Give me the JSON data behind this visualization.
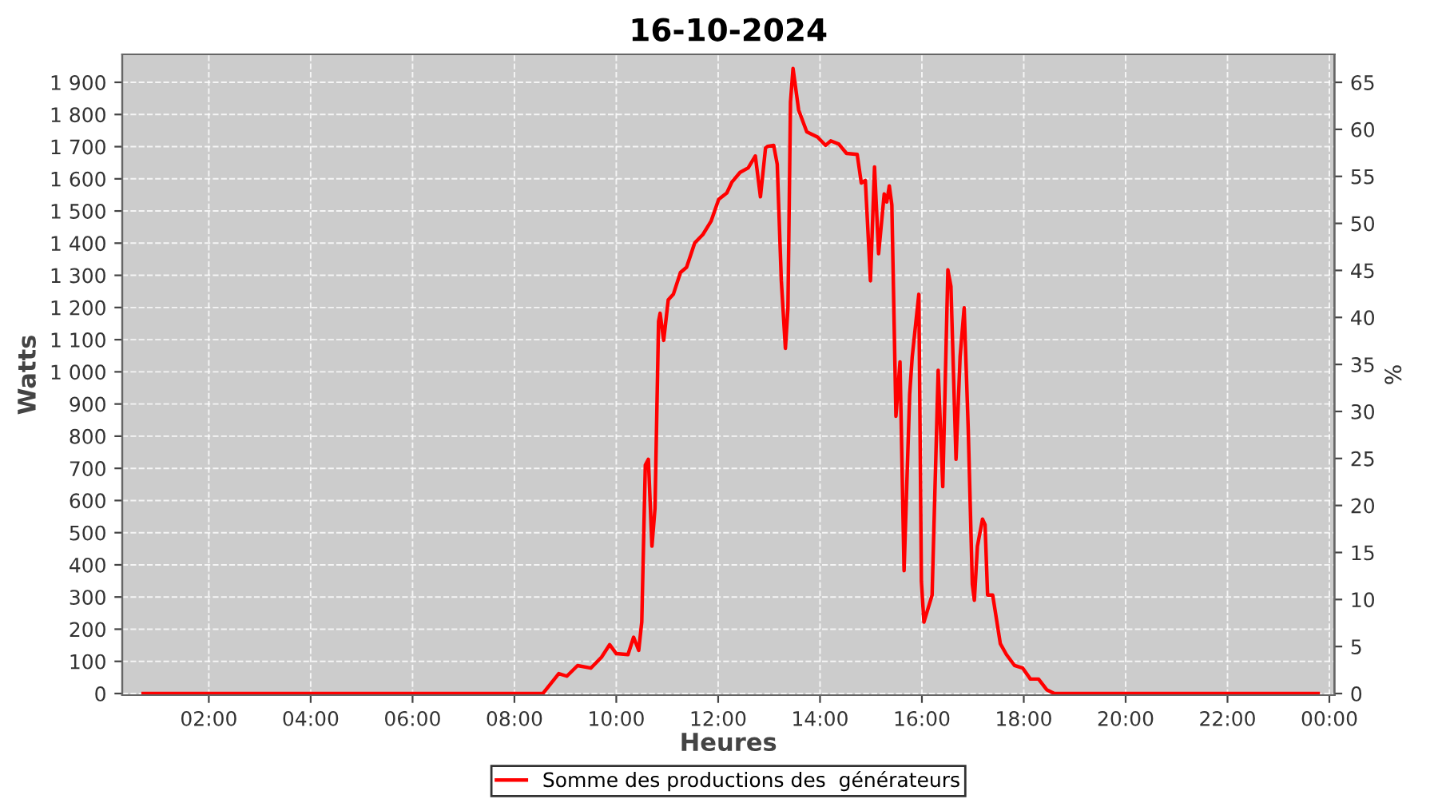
{
  "chart_data": {
    "type": "line",
    "title": "16-10-2024",
    "xlabel": "Heures",
    "ylabel": "Watts",
    "y2label": "%",
    "x": [
      0.71,
      4.0,
      8.0,
      8.56,
      8.87,
      9.03,
      9.24,
      9.5,
      9.71,
      9.87,
      10.0,
      10.23,
      10.34,
      10.44,
      10.5,
      10.57,
      10.63,
      10.7,
      10.76,
      10.83,
      10.86,
      10.93,
      11.02,
      11.12,
      11.26,
      11.38,
      11.54,
      11.7,
      11.86,
      12.01,
      12.17,
      12.27,
      12.43,
      12.59,
      12.73,
      12.83,
      12.93,
      12.97,
      13.09,
      13.16,
      13.24,
      13.32,
      13.37,
      13.42,
      13.47,
      13.58,
      13.74,
      13.95,
      14.11,
      14.21,
      14.37,
      14.52,
      14.73,
      14.81,
      14.89,
      14.99,
      15.07,
      15.15,
      15.26,
      15.31,
      15.36,
      15.41,
      15.49,
      15.57,
      15.65,
      15.76,
      15.81,
      15.94,
      15.99,
      16.04,
      16.2,
      16.32,
      16.41,
      16.51,
      16.57,
      16.67,
      16.75,
      16.83,
      16.91,
      16.99,
      17.03,
      17.09,
      17.19,
      17.24,
      17.29,
      17.39,
      17.54,
      17.66,
      17.82,
      17.98,
      18.13,
      18.29,
      18.45,
      18.6,
      21.0,
      23.78
    ],
    "series": [
      {
        "name": "Somme des productions des  générateurs",
        "color": "#ff0000",
        "values": [
          0,
          0,
          0,
          0,
          62,
          54,
          87,
          79,
          113,
          152,
          124,
          121,
          175,
          134,
          222,
          710,
          728,
          458,
          576,
          1157,
          1182,
          1098,
          1224,
          1241,
          1309,
          1325,
          1401,
          1427,
          1468,
          1536,
          1556,
          1590,
          1620,
          1634,
          1671,
          1544,
          1696,
          1701,
          1704,
          1645,
          1283,
          1073,
          1199,
          1839,
          1943,
          1814,
          1746,
          1730,
          1704,
          1718,
          1708,
          1679,
          1676,
          1587,
          1595,
          1283,
          1637,
          1367,
          1553,
          1528,
          1578,
          1519,
          862,
          1031,
          382,
          930,
          1047,
          1241,
          349,
          222,
          306,
          1005,
          643,
          1317,
          1266,
          728,
          1047,
          1199,
          820,
          340,
          290,
          458,
          542,
          525,
          306,
          306,
          155,
          121,
          87,
          79,
          45,
          45,
          12,
          0,
          0,
          0
        ]
      }
    ],
    "xlim": [
      0.3,
      24.1
    ],
    "xticks": [
      {
        "value": 2,
        "label": "02:00"
      },
      {
        "value": 4,
        "label": "04:00"
      },
      {
        "value": 6,
        "label": "06:00"
      },
      {
        "value": 8,
        "label": "08:00"
      },
      {
        "value": 10,
        "label": "10:00"
      },
      {
        "value": 12,
        "label": "12:00"
      },
      {
        "value": 14,
        "label": "14:00"
      },
      {
        "value": 16,
        "label": "16:00"
      },
      {
        "value": 18,
        "label": "18:00"
      },
      {
        "value": 20,
        "label": "20:00"
      },
      {
        "value": 22,
        "label": "22:00"
      },
      {
        "value": 24,
        "label": "00:00"
      }
    ],
    "ylim": [
      -5,
      1987
    ],
    "yticks": [
      0,
      100,
      200,
      300,
      400,
      500,
      600,
      700,
      800,
      900,
      {
        "value": 1000,
        "label": "1 000"
      },
      {
        "value": 1100,
        "label": "1 100"
      },
      {
        "value": 1200,
        "label": "1 200"
      },
      {
        "value": 1300,
        "label": "1 300"
      },
      {
        "value": 1400,
        "label": "1 400"
      },
      {
        "value": 1500,
        "label": "1 500"
      },
      {
        "value": 1600,
        "label": "1 600"
      },
      {
        "value": 1700,
        "label": "1 700"
      },
      {
        "value": 1800,
        "label": "1 800"
      },
      {
        "value": 1900,
        "label": "1 900"
      }
    ],
    "y2lim": [
      -0.17,
      67.98
    ],
    "y2ticks": [
      0,
      5,
      10,
      15,
      20,
      25,
      30,
      35,
      40,
      45,
      50,
      55,
      60,
      65
    ],
    "grid": true,
    "legend": "bottom",
    "marker": "none",
    "line_style": "solid"
  }
}
